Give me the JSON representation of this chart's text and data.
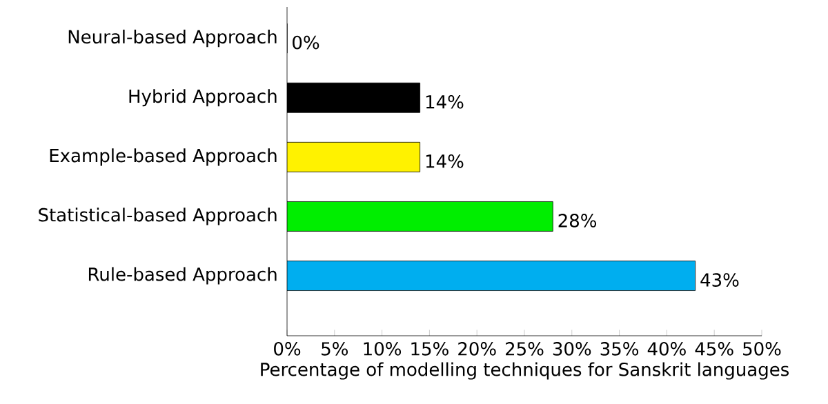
{
  "chart_data": {
    "type": "bar",
    "orientation": "horizontal",
    "xlabel": "Percentage of modelling techniques for Sanskrit languages",
    "categories": [
      "Neural-based Approach",
      "Hybrid Approach",
      "Example-based Approach",
      "Statistical-based Approach",
      "Rule-based Approach"
    ],
    "values": [
      0,
      14,
      14,
      28,
      43
    ],
    "colors": [
      "#000000",
      "#000000",
      "#fff200",
      "#00ee00",
      "#00aeef"
    ],
    "value_labels": [
      "0%",
      "14%",
      "14%",
      "28%",
      "43%"
    ],
    "xlim": [
      0,
      50
    ],
    "xticks": [
      {
        "value": 0,
        "label": "0%"
      },
      {
        "value": 5,
        "label": "5%"
      },
      {
        "value": 10,
        "label": "10%"
      },
      {
        "value": 15,
        "label": "15%"
      },
      {
        "value": 20,
        "label": "20%"
      },
      {
        "value": 25,
        "label": "25%"
      },
      {
        "value": 30,
        "label": "30%"
      },
      {
        "value": 35,
        "label": "35%"
      },
      {
        "value": 40,
        "label": "40%"
      },
      {
        "value": 45,
        "label": "45%"
      },
      {
        "value": 50,
        "label": "50%"
      }
    ],
    "grid": false
  }
}
